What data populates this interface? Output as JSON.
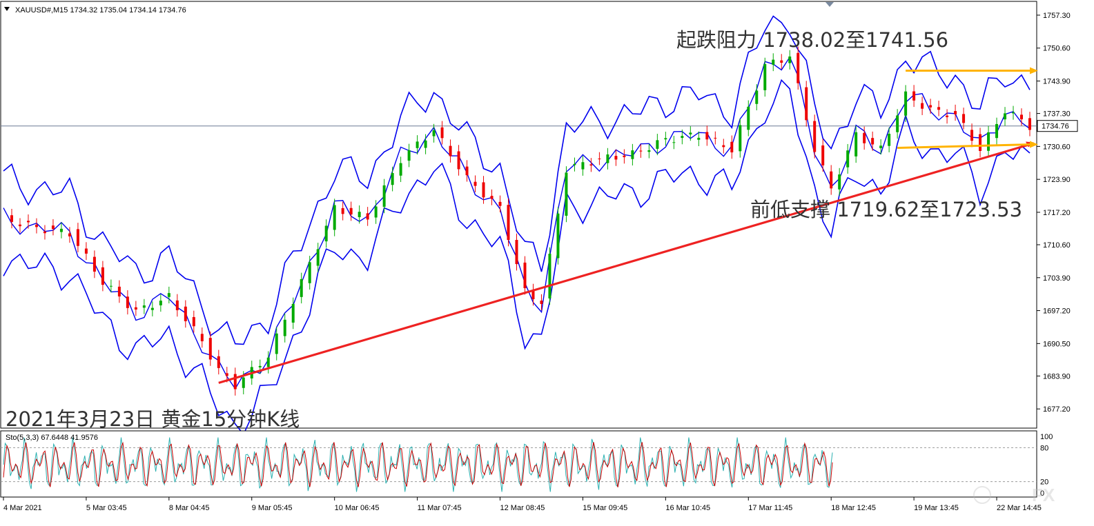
{
  "header": {
    "symbol_line": "XAUUSD#,M15  1734.32 1735.04 1734.14 1734.76",
    "stoch_line": "Sto(5,3,3) 67.6448 41.9576"
  },
  "colors": {
    "band": "#0000ee",
    "trendline": "#ee2222",
    "arrow": "#ffb300",
    "up_candle": "#00aa00",
    "down_candle": "#ee0000",
    "stoch_main": "#2ab0b0",
    "stoch_signal": "#cc0000",
    "price_line": "#6c7a93"
  },
  "annotations": {
    "resistance": "起跌阻力 1738.02至1741.56",
    "support": "前低支撑 1719.62至1723.53",
    "title": "2021年3月23日 黄金15分钟K线"
  },
  "watermark": "FX",
  "chart_data": {
    "type": "candlestick",
    "symbol": "XAUUSD#",
    "timeframe": "M15",
    "ohlc_last": {
      "open": 1734.32,
      "high": 1735.04,
      "low": 1734.14,
      "close": 1734.76
    },
    "current_price": 1734.76,
    "current_price_label": "1734.76",
    "y_ticks": [
      "1757.30",
      "1750.60",
      "1743.90",
      "1737.30",
      "1730.60",
      "1723.90",
      "1717.20",
      "1710.60",
      "1703.90",
      "1697.20",
      "1690.50",
      "1683.90",
      "1677.20"
    ],
    "y_tick_values": [
      1757.3,
      1750.6,
      1743.9,
      1737.3,
      1730.6,
      1723.9,
      1717.2,
      1710.6,
      1703.9,
      1697.2,
      1690.5,
      1683.9,
      1677.2
    ],
    "ylim": [
      1673.3,
      1760.1
    ],
    "x_ticks": [
      "4 Mar 2021",
      "5 Mar 03:45",
      "8 Mar 04:45",
      "9 Mar 05:45",
      "10 Mar 06:45",
      "11 Mar 07:45",
      "12 Mar 08:45",
      "15 Mar 09:45",
      "16 Mar 10:45",
      "17 Mar 11:45",
      "18 Mar 12:45",
      "19 Mar 13:45",
      "22 Mar 14:45"
    ],
    "x_tick_index": [
      0,
      10,
      20,
      30,
      40,
      50,
      60,
      70,
      80,
      90,
      100,
      110,
      120
    ],
    "bars": 125,
    "price_path": [
      [
        0,
        1716
      ],
      [
        4,
        1714
      ],
      [
        8,
        1713
      ],
      [
        12,
        1703
      ],
      [
        16,
        1697
      ],
      [
        20,
        1700
      ],
      [
        24,
        1691
      ],
      [
        26,
        1685
      ],
      [
        28,
        1682
      ],
      [
        32,
        1688
      ],
      [
        36,
        1703
      ],
      [
        40,
        1718
      ],
      [
        44,
        1716
      ],
      [
        48,
        1728
      ],
      [
        52,
        1734
      ],
      [
        56,
        1724
      ],
      [
        60,
        1718
      ],
      [
        63,
        1701
      ],
      [
        65,
        1699
      ],
      [
        68,
        1726
      ],
      [
        72,
        1728
      ],
      [
        76,
        1729
      ],
      [
        80,
        1732
      ],
      [
        84,
        1733
      ],
      [
        88,
        1730
      ],
      [
        92,
        1747
      ],
      [
        95,
        1749
      ],
      [
        98,
        1730
      ],
      [
        100,
        1722
      ],
      [
        103,
        1733
      ],
      [
        106,
        1730
      ],
      [
        109,
        1741
      ],
      [
        112,
        1738
      ],
      [
        115,
        1737
      ],
      [
        118,
        1730
      ],
      [
        121,
        1738
      ],
      [
        124,
        1734.76
      ]
    ],
    "trendline": {
      "from": [
        26,
        1682.5
      ],
      "to": [
        124,
        1731
      ]
    },
    "resistance_arrow": {
      "from": [
        109,
        1746
      ],
      "to": [
        125,
        1746
      ]
    },
    "support_arrow": {
      "from": [
        108,
        1730.3
      ],
      "to": [
        125,
        1731
      ]
    },
    "stochastic": {
      "params": "5,3,3",
      "main": 67.6448,
      "signal": 41.9576,
      "levels": [
        80,
        20
      ],
      "y_ticks": [
        "100",
        "80",
        "20",
        "0"
      ],
      "y_tick_values": [
        100,
        80,
        20,
        0
      ]
    }
  }
}
